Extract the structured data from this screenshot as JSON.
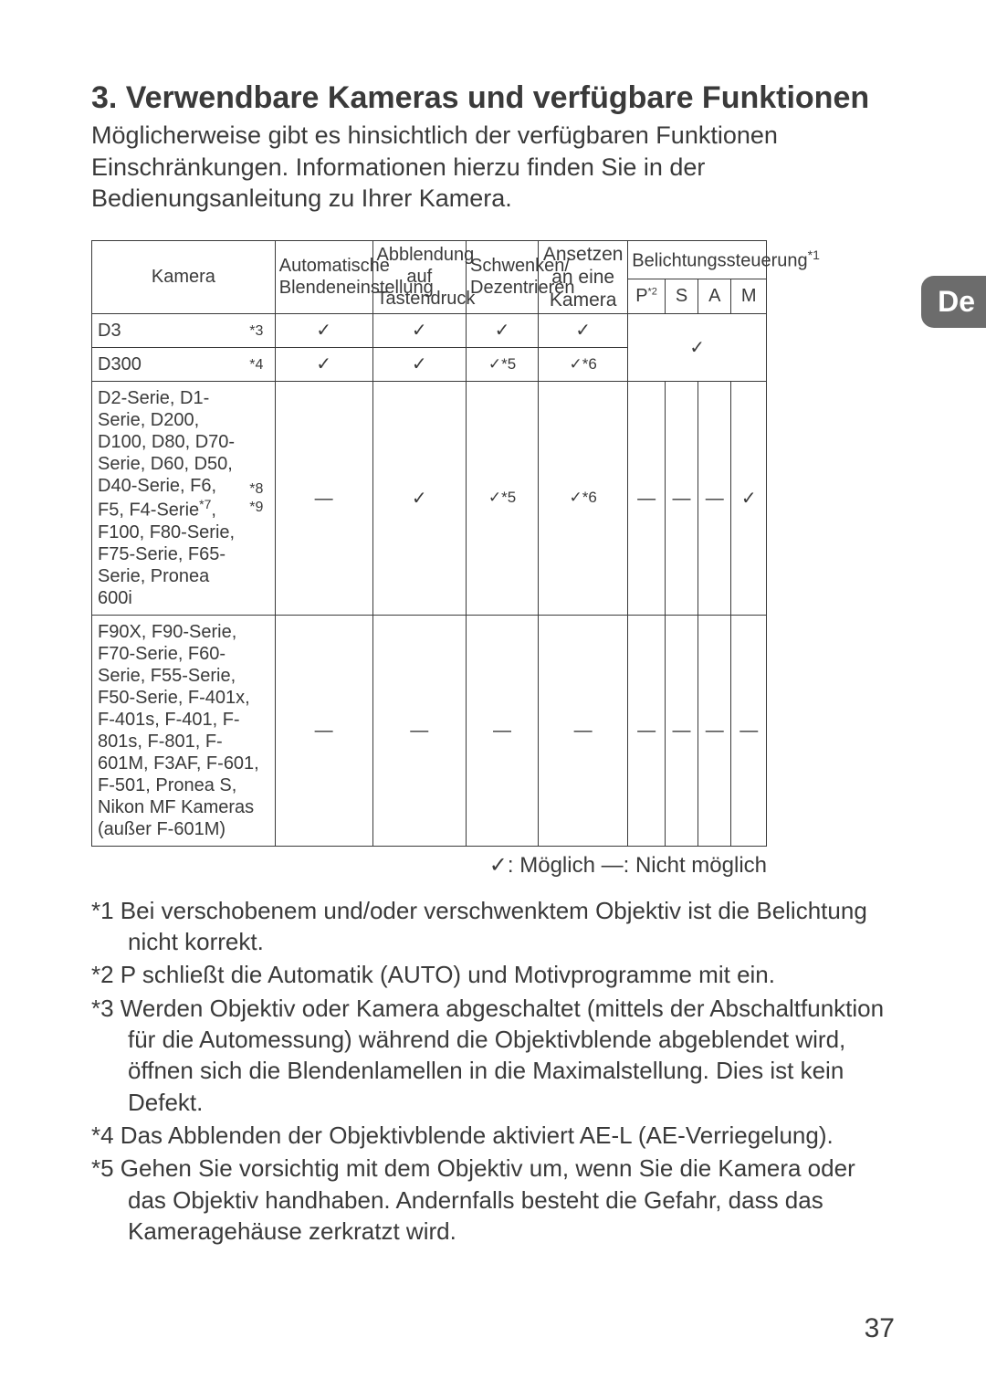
{
  "title": "3. Verwendbare Kameras und verfügbare Funktionen",
  "intro": "Möglicherweise gibt es hinsichtlich der verfügbaren Funktionen Einschränkungen. Informationen hierzu finden Sie in der Bedienungsanleitung zu Ihrer Kamera.",
  "lang_tab": "De",
  "headers": {
    "kamera": "Kamera",
    "auto_blend": "Automatische Blendeneinstellung",
    "abblendung": "Abblendung auf Tastendruck",
    "schwenken": "Schwenken/ Dezentrieren",
    "ansetzen": "Ansetzen an eine Kamera",
    "belichtung": "Belichtungssteuerung",
    "belichtung_sup": "*1",
    "p": "P",
    "p_sup": "*2",
    "s": "S",
    "a": "A",
    "m": "M"
  },
  "rows": [
    {
      "camera": "D3",
      "fn": "*3",
      "auto": "✓",
      "abbl": "✓",
      "schw": "✓",
      "anst": "✓",
      "psam_merged": "✓"
    },
    {
      "camera": "D300",
      "fn": "*4",
      "auto": "✓",
      "abbl": "✓",
      "schw": "✓*5",
      "anst": "✓*6"
    },
    {
      "camera": "D2-Serie, D1-Serie, D200, D100, D80, D70-Serie, D60, D50, D40-Serie, F6, F5, F4-Serie*7, F100, F80-Serie, F75-Serie, F65-Serie, Pronea 600i",
      "fn": "*8\n*9",
      "auto": "—",
      "abbl": "✓",
      "schw": "✓*5",
      "anst": "✓*6",
      "p": "—",
      "s": "—",
      "a": "—",
      "m": "✓"
    },
    {
      "camera": "F90X, F90-Serie, F70-Serie, F60-Serie, F55-Serie, F50-Serie, F-401x, F-401s, F-401, F-801s, F-801, F-601M, F3AF, F-601, F-501, Pronea S, Nikon MF Kameras (außer F-601M)",
      "fn": "",
      "auto": "—",
      "abbl": "—",
      "schw": "—",
      "anst": "—",
      "p": "—",
      "s": "—",
      "a": "—",
      "m": "—"
    }
  ],
  "legend": "✓: Möglich  —: Nicht möglich",
  "footnotes": [
    "*1 Bei verschobenem und/oder verschwenktem Objektiv ist die Belichtung nicht korrekt.",
    "*2 P schließt die Automatik (AUTO) und Motivprogramme mit ein.",
    "*3 Werden Objektiv oder Kamera abgeschaltet (mittels der Abschaltfunktion für die Automessung) während die Objektivblende abgeblendet wird, öffnen sich die Blendenlamellen in die Maximalstellung. Dies ist kein Defekt.",
    "*4 Das Abblenden der Objektivblende aktiviert AE-L (AE-Verriegelung).",
    "*5 Gehen Sie vorsichtig mit dem Objektiv um, wenn Sie die Kamera oder das Objektiv handhaben. Andernfalls besteht die Gefahr, dass das Kameragehäuse zerkratzt wird."
  ],
  "pagenum": "37",
  "colwidths": {
    "camera": 158,
    "fn": 30,
    "auto": 100,
    "abbl": 96,
    "schw": 74,
    "anst": 92,
    "p": 36,
    "s": 34,
    "a": 34,
    "m": 34
  }
}
